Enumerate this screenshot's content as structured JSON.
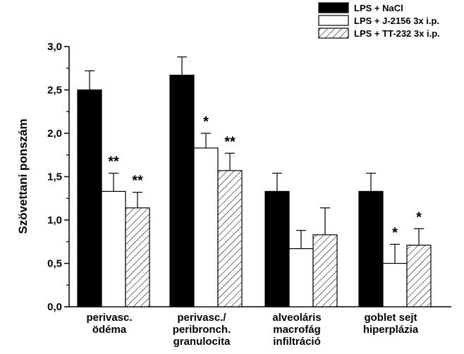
{
  "chart_data": {
    "type": "bar",
    "ylabel": "Szövettani ponszám",
    "ylim": [
      0,
      3.0
    ],
    "yticks": [
      "0,0",
      "0,5",
      "1,0",
      "1,5",
      "2,0",
      "2,5",
      "3,0"
    ],
    "categories": [
      [
        "perivasc.",
        "ödéma"
      ],
      [
        "perivasc./",
        "peribronch.",
        "granulocita"
      ],
      [
        "alveoláris",
        "macrofág",
        "infiltráció"
      ],
      [
        "goblet sejt",
        "hiperplázia"
      ]
    ],
    "legend_position": "top-right",
    "series": [
      {
        "name": "LPS + NaCl",
        "fill": "solid",
        "color": "#000000",
        "values": [
          2.5,
          2.67,
          1.33,
          1.33
        ],
        "errors": [
          0.22,
          0.21,
          0.21,
          0.21
        ],
        "significance": [
          "",
          "",
          "",
          ""
        ]
      },
      {
        "name": "LPS + J-2156 3x i.p.",
        "fill": "white",
        "color": "#ffffff",
        "values": [
          1.33,
          1.83,
          0.67,
          0.5
        ],
        "errors": [
          0.21,
          0.17,
          0.21,
          0.22
        ],
        "significance": [
          "**",
          "*",
          "",
          "*"
        ]
      },
      {
        "name": "LPS + TT-232 3x i.p.",
        "fill": "hatch",
        "color": "#ffffff",
        "values": [
          1.14,
          1.57,
          0.83,
          0.71
        ],
        "errors": [
          0.18,
          0.2,
          0.31,
          0.19
        ],
        "significance": [
          "**",
          "**",
          "",
          "*"
        ]
      }
    ]
  }
}
